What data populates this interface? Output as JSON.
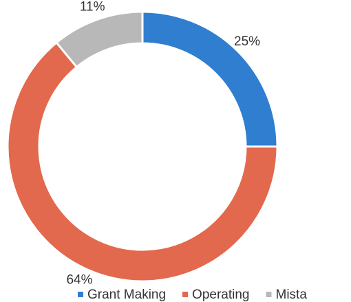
{
  "chart_data": {
    "type": "donut",
    "categories": [
      "Grant Making",
      "Operating",
      "Mista"
    ],
    "values": [
      25,
      64,
      11
    ],
    "value_labels": [
      "25%",
      "64%",
      "11%"
    ],
    "colors": [
      "#2f7ed0",
      "#e2694d",
      "#b8b8b8"
    ],
    "legend": "bottom"
  }
}
